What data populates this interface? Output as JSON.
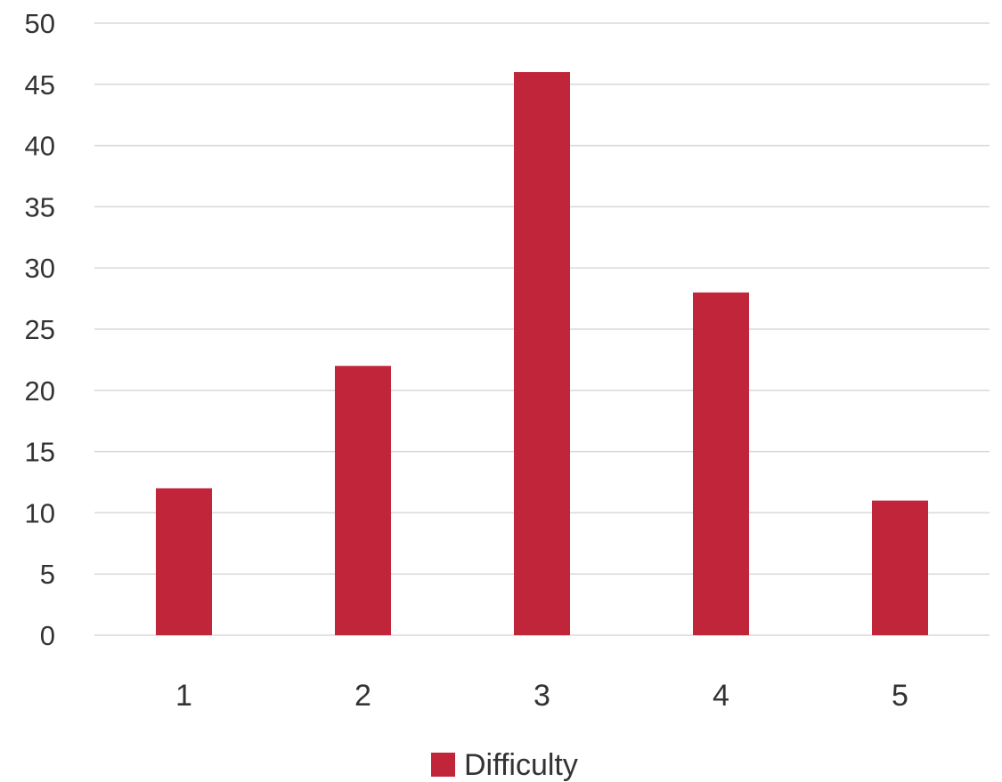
{
  "chart_data": {
    "type": "bar",
    "title": "",
    "xlabel": "",
    "ylabel": "",
    "categories": [
      "1",
      "2",
      "3",
      "4",
      "5"
    ],
    "series": [
      {
        "name": "Difficulty",
        "values": [
          12,
          22,
          46,
          28,
          11
        ],
        "color": "#c0253a"
      }
    ],
    "ylim": [
      0,
      50
    ],
    "yticks": [
      0,
      5,
      10,
      15,
      20,
      25,
      30,
      35,
      40,
      45,
      50
    ],
    "grid": true,
    "legend_position": "bottom"
  }
}
